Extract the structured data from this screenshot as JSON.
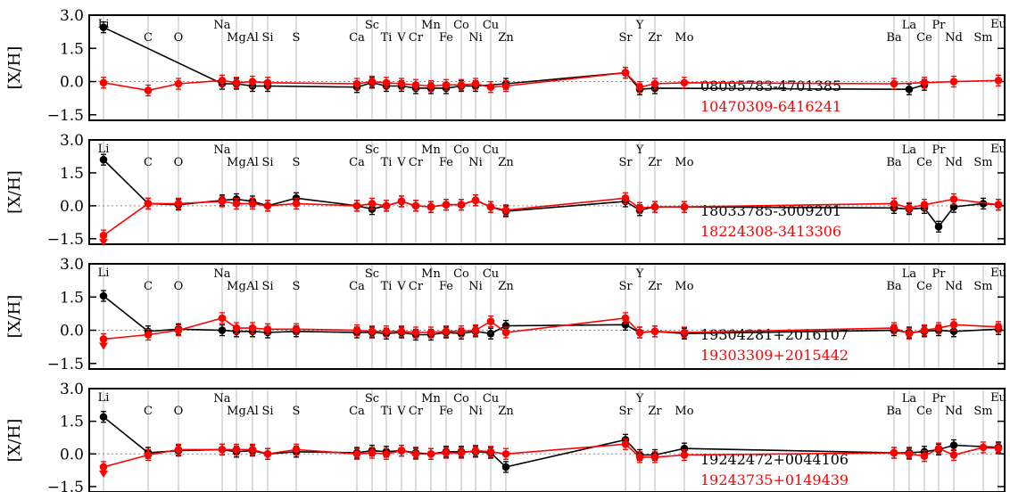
{
  "chart_data": {
    "type": "line",
    "ylabel": "[X/H]",
    "ylim": [
      -1.75,
      3.0
    ],
    "yticks": [
      "3.0",
      "1.5",
      "0.0",
      "−1.5"
    ],
    "elements": [
      "Li",
      "C",
      "O",
      "Na",
      "Mg",
      "Al",
      "Si",
      "S",
      "Ca",
      "Sc",
      "Ti",
      "V",
      "Cr",
      "Mn",
      "Fe",
      "Co",
      "Ni",
      "Cu",
      "Zn",
      "Sr",
      "Y",
      "Zr",
      "Mo",
      "Ba",
      "La",
      "Ce",
      "Pr",
      "Nd",
      "Sm",
      "Eu"
    ],
    "colors": {
      "star_a": "#000000",
      "star_b": "#ff0000",
      "grid": "#bbbbbb",
      "zero_line": "#888888"
    },
    "panels": [
      {
        "series": [
          {
            "name": "08095783-4701385",
            "color": "#000000",
            "values": {
              "Li": 2.45,
              "Na": -0.1,
              "Mg": -0.1,
              "Al": -0.2,
              "Si": -0.2,
              "Ca": -0.25,
              "Sc": -0.05,
              "Ti": -0.2,
              "V": -0.2,
              "Cr": -0.3,
              "Mn": -0.3,
              "Fe": -0.3,
              "Co": -0.2,
              "Ni": -0.2,
              "Zn": -0.1,
              "Sr": 0.4,
              "Y": -0.35,
              "Zr": -0.3,
              "La": -0.35,
              "Ce": -0.15
            }
          },
          {
            "name": "10470309-6416241",
            "color": "#ff0000",
            "values": {
              "Li": -0.05,
              "C": -0.4,
              "O": -0.1,
              "Na": 0.05,
              "Mg": -0.05,
              "Al": 0.0,
              "Si": -0.05,
              "Ca": -0.1,
              "Sc": 0.0,
              "Ti": -0.05,
              "V": -0.1,
              "Cr": -0.15,
              "Mn": -0.2,
              "Fe": -0.15,
              "Co": -0.15,
              "Ni": -0.1,
              "Cu": -0.25,
              "Zn": -0.2,
              "Sr": 0.4,
              "Y": -0.25,
              "Zr": -0.1,
              "Mo": -0.05,
              "Ba": -0.1,
              "Ce": -0.05,
              "Nd": 0.0,
              "Eu": 0.05
            }
          }
        ]
      },
      {
        "series": [
          {
            "name": "18033785-3009201",
            "color": "#000000",
            "values": {
              "Li": 2.1,
              "C": 0.1,
              "O": 0.05,
              "Na": 0.25,
              "Mg": 0.3,
              "Al": 0.2,
              "Si": 0.0,
              "S": 0.35,
              "Ca": 0.0,
              "Sc": -0.15,
              "Ti": 0.0,
              "V": 0.2,
              "Cr": 0.0,
              "Mn": -0.05,
              "Fe": 0.05,
              "Co": 0.05,
              "Ni": 0.25,
              "Cu": -0.05,
              "Zn": -0.25,
              "Sr": 0.2,
              "Y": -0.2,
              "Zr": -0.05,
              "Mo": -0.05,
              "Ba": -0.1,
              "La": -0.15,
              "Ce": -0.1,
              "Pr": -0.95,
              "Nd": -0.05,
              "Sm": 0.1,
              "Eu": 0.05
            }
          },
          {
            "name": "18224308-3413306",
            "color": "#ff0000",
            "values": {
              "Li": -1.35,
              "C": 0.1,
              "O": 0.1,
              "Na": 0.2,
              "Mg": 0.1,
              "Al": 0.1,
              "Si": 0.0,
              "S": 0.1,
              "Ca": 0.0,
              "Sc": 0.1,
              "Ti": 0.0,
              "V": 0.2,
              "Cr": 0.0,
              "Mn": -0.05,
              "Fe": 0.05,
              "Co": 0.05,
              "Ni": 0.25,
              "Cu": -0.05,
              "Zn": -0.2,
              "Sr": 0.35,
              "Y": -0.1,
              "Zr": -0.05,
              "Mo": -0.05,
              "Ba": 0.1,
              "La": -0.1,
              "Ce": 0.05,
              "Nd": 0.3,
              "Eu": 0.05
            }
          }
        ]
      },
      {
        "series": [
          {
            "name": "19304281+2016107",
            "color": "#000000",
            "values": {
              "Li": 1.55,
              "C": -0.05,
              "O": 0.05,
              "Na": 0.0,
              "Mg": -0.05,
              "Al": -0.05,
              "Si": -0.1,
              "S": -0.05,
              "Ca": -0.1,
              "Sc": -0.1,
              "Ti": -0.15,
              "V": -0.1,
              "Cr": -0.2,
              "Mn": -0.2,
              "Fe": -0.1,
              "Co": -0.15,
              "Ni": -0.05,
              "Cu": -0.15,
              "Zn": 0.2,
              "Sr": 0.25,
              "Y": -0.1,
              "Zr": -0.05,
              "Mo": -0.15,
              "Ba": 0.0,
              "La": -0.1,
              "Ce": -0.05,
              "Pr": 0.0,
              "Nd": -0.05,
              "Eu": 0.05
            }
          },
          {
            "name": "19303309+2015442",
            "color": "#ff0000",
            "values": {
              "Li": -0.4,
              "C": -0.2,
              "O": 0.0,
              "Na": 0.55,
              "Mg": 0.1,
              "Al": 0.1,
              "Si": 0.05,
              "S": 0.05,
              "Ca": 0.0,
              "Sc": -0.05,
              "Ti": -0.05,
              "V": -0.05,
              "Cr": -0.1,
              "Mn": -0.1,
              "Fe": -0.05,
              "Co": -0.05,
              "Ni": 0.0,
              "Cu": 0.4,
              "Zn": -0.1,
              "Sr": 0.55,
              "Y": -0.1,
              "Zr": -0.05,
              "Mo": -0.1,
              "Ba": 0.1,
              "La": -0.15,
              "Ce": 0.0,
              "Pr": 0.1,
              "Nd": 0.25,
              "Eu": 0.15
            }
          }
        ]
      },
      {
        "series": [
          {
            "name": "19242472+0044106",
            "color": "#000000",
            "values": {
              "Li": 1.7,
              "C": 0.05,
              "O": 0.15,
              "Na": 0.2,
              "Mg": 0.1,
              "Al": 0.15,
              "Si": 0.0,
              "S": 0.1,
              "Ca": 0.05,
              "Sc": 0.15,
              "Ti": 0.1,
              "V": 0.15,
              "Cr": 0.05,
              "Mn": 0.0,
              "Fe": 0.1,
              "Co": 0.1,
              "Ni": 0.1,
              "Cu": 0.05,
              "Zn": -0.6,
              "Sr": 0.65,
              "Y": -0.05,
              "Zr": -0.05,
              "Mo": 0.25,
              "Ba": 0.05,
              "La": 0.05,
              "Ce": 0.1,
              "Pr": 0.2,
              "Nd": 0.4,
              "Eu": 0.3
            }
          },
          {
            "name": "19243735+0149439",
            "color": "#ff0000",
            "values": {
              "Li": -0.6,
              "C": -0.05,
              "O": 0.2,
              "Na": 0.2,
              "Mg": 0.2,
              "Al": 0.2,
              "Si": 0.0,
              "S": 0.2,
              "Ca": 0.0,
              "Sc": 0.05,
              "Ti": 0.0,
              "V": 0.15,
              "Cr": 0.0,
              "Mn": 0.0,
              "Fe": 0.05,
              "Co": 0.05,
              "Ni": 0.15,
              "Cu": 0.1,
              "Zn": 0.0,
              "Sr": 0.45,
              "Y": -0.15,
              "Zr": -0.15,
              "Mo": -0.05,
              "Ba": 0.05,
              "La": 0.0,
              "Ce": -0.1,
              "Pr": 0.25,
              "Nd": -0.05,
              "Sm": 0.3,
              "Eu": 0.25
            }
          }
        ]
      }
    ]
  }
}
